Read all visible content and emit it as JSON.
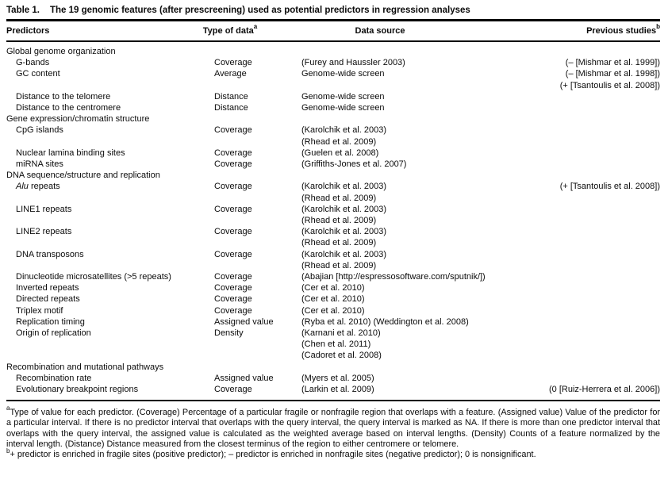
{
  "table": {
    "title_label": "Table 1.",
    "title": "The 19 genomic features (after prescreening) used as potential predictors in regression analyses",
    "columns": [
      {
        "label": "Predictors",
        "sup": ""
      },
      {
        "label": "Type of data",
        "sup": "a"
      },
      {
        "label": "Data source",
        "sup": ""
      },
      {
        "label": "Previous studies",
        "sup": "b"
      }
    ],
    "rows": [
      {
        "kind": "section",
        "label": "Global genome organization"
      },
      {
        "kind": "item",
        "predictor": "G-bands",
        "type": "Coverage",
        "sources": [
          "(Furey and Haussler 2003)"
        ],
        "studies": [
          "(– [Mishmar et al. 1999])"
        ]
      },
      {
        "kind": "item",
        "predictor": "GC content",
        "type": "Average",
        "sources": [
          "Genome-wide screen"
        ],
        "studies": [
          "(– [Mishmar et al. 1998])",
          "(+ [Tsantoulis et al. 2008])"
        ]
      },
      {
        "kind": "item",
        "predictor": "Distance to the telomere",
        "type": "Distance",
        "sources": [
          "Genome-wide screen"
        ],
        "studies": []
      },
      {
        "kind": "item",
        "predictor": "Distance to the centromere",
        "type": "Distance",
        "sources": [
          "Genome-wide screen"
        ],
        "studies": []
      },
      {
        "kind": "section",
        "label": "Gene expression/chromatin structure"
      },
      {
        "kind": "item",
        "predictor": "CpG islands",
        "type": "Coverage",
        "sources": [
          "(Karolchik et al. 2003)",
          "(Rhead et al. 2009)"
        ],
        "studies": []
      },
      {
        "kind": "item",
        "predictor": "Nuclear lamina binding sites",
        "type": "Coverage",
        "sources": [
          "(Guelen et al. 2008)"
        ],
        "studies": []
      },
      {
        "kind": "item",
        "predictor": "miRNA sites",
        "type": "Coverage",
        "sources": [
          "(Griffiths-Jones et al. 2007)"
        ],
        "studies": []
      },
      {
        "kind": "section",
        "label": "DNA sequence/structure and replication"
      },
      {
        "kind": "item",
        "predictor_italic": "Alu",
        "predictor": " repeats",
        "type": "Coverage",
        "sources": [
          "(Karolchik et al. 2003)",
          "(Rhead et al. 2009)"
        ],
        "studies": [
          "(+ [Tsantoulis et al. 2008])"
        ]
      },
      {
        "kind": "item",
        "predictor": "LINE1 repeats",
        "type": "Coverage",
        "sources": [
          "(Karolchik et al. 2003)",
          "(Rhead et al. 2009)"
        ],
        "studies": []
      },
      {
        "kind": "item",
        "predictor": "LINE2 repeats",
        "type": "Coverage",
        "sources": [
          "(Karolchik et al. 2003)",
          "(Rhead et al. 2009)"
        ],
        "studies": []
      },
      {
        "kind": "item",
        "predictor": "DNA transposons",
        "type": "Coverage",
        "sources": [
          "(Karolchik et al. 2003)",
          "(Rhead et al. 2009)"
        ],
        "studies": []
      },
      {
        "kind": "item",
        "predictor": "Dinucleotide microsatellites (>5 repeats)",
        "type": "Coverage",
        "sources": [
          "(Abajian [http://espressosoftware.com/sputnik/])"
        ],
        "studies": []
      },
      {
        "kind": "item",
        "predictor": "Inverted repeats",
        "type": "Coverage",
        "sources": [
          "(Cer et al. 2010)"
        ],
        "studies": []
      },
      {
        "kind": "item",
        "predictor": "Directed repeats",
        "type": "Coverage",
        "sources": [
          "(Cer et al. 2010)"
        ],
        "studies": []
      },
      {
        "kind": "item",
        "predictor": "Triplex motif",
        "type": "Coverage",
        "sources": [
          "(Cer et al. 2010)"
        ],
        "studies": []
      },
      {
        "kind": "item",
        "predictor": "Replication timing",
        "type": "Assigned value",
        "sources": [
          "(Ryba et al. 2010) (Weddington et al. 2008)"
        ],
        "studies": []
      },
      {
        "kind": "item",
        "predictor": "Origin of replication",
        "type": "Density",
        "sources": [
          "(Karnani et al. 2010)",
          "(Chen et al. 2011)",
          "(Cadoret et al. 2008)"
        ],
        "studies": []
      },
      {
        "kind": "section",
        "label": "Recombination and mutational pathways"
      },
      {
        "kind": "item",
        "predictor": "Recombination rate",
        "type": "Assigned value",
        "sources": [
          "(Myers et al. 2005)"
        ],
        "studies": []
      },
      {
        "kind": "item",
        "predictor": "Evolutionary breakpoint regions",
        "type": "Coverage",
        "sources": [
          "(Larkin et al. 2009)"
        ],
        "studies": [
          "(0 [Ruiz-Herrera et al. 2006])"
        ]
      }
    ],
    "footnotes": [
      {
        "sup": "a",
        "text": "Type of value for each predictor. (Coverage) Percentage of a particular fragile or nonfragile region that overlaps with a feature. (Assigned value) Value of the predictor for a particular interval. If there is no predictor interval that overlaps with the query interval, the query interval is marked as NA. If there is more than one predictor interval that overlaps with the query interval, the assigned value is calculated as the weighted average based on interval lengths. (Density) Counts of a feature normalized by the interval length. (Distance) Distance measured from the closest terminus of the region to either centromere or telomere."
      },
      {
        "sup": "b",
        "text": "+ predictor is enriched in fragile sites (positive predictor); – predictor is enriched in nonfragile sites (negative predictor); 0 is nonsignificant."
      }
    ]
  }
}
